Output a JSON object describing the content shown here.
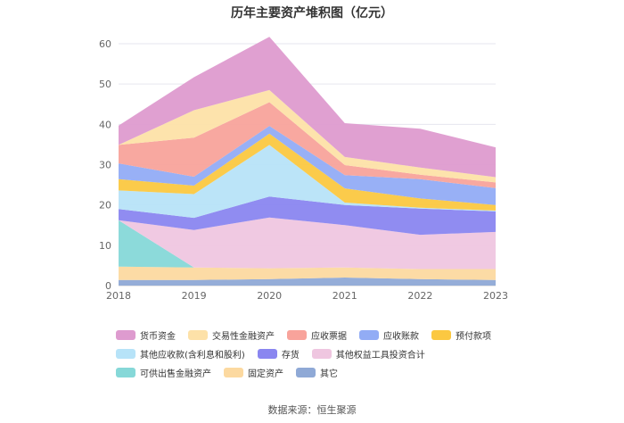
{
  "chart_data": {
    "type": "area",
    "title": "历年主要资产堆积图（亿元）",
    "x": [
      "2018",
      "2019",
      "2020",
      "2021",
      "2022",
      "2023"
    ],
    "y_ticks": [
      "0",
      "10",
      "20",
      "30",
      "40",
      "50",
      "60"
    ],
    "ylim": [
      0,
      60
    ],
    "stacked": true,
    "grid": true,
    "legend_position": "bottom",
    "series": [
      {
        "name": "其它",
        "color": "#8fa9d6",
        "values": [
          1.4,
          1.4,
          1.6,
          2.0,
          1.6,
          1.4
        ]
      },
      {
        "name": "固定资产",
        "color": "#fcd9a0",
        "values": [
          3.3,
          3.1,
          2.7,
          2.5,
          2.5,
          2.7
        ]
      },
      {
        "name": "可供出售金融资产",
        "color": "#86d8d8",
        "values": [
          11.5,
          0,
          0,
          0,
          0,
          0
        ]
      },
      {
        "name": "其他权益工具投资合计",
        "color": "#efc6e0",
        "values": [
          0,
          9.3,
          12.6,
          10.5,
          8.5,
          9.2
        ]
      },
      {
        "name": "存货",
        "color": "#8a86f0",
        "values": [
          2.8,
          3.0,
          5.2,
          5.0,
          6.5,
          5.1
        ]
      },
      {
        "name": "其他应收款(含利息和股利)",
        "color": "#b7e3f8",
        "values": [
          4.6,
          5.9,
          12.8,
          0.6,
          0.2,
          0.2
        ]
      },
      {
        "name": "预付款项",
        "color": "#fbc841",
        "values": [
          2.8,
          2.1,
          2.8,
          3.5,
          2.3,
          1.4
        ]
      },
      {
        "name": "应收账款",
        "color": "#92acf5",
        "values": [
          3.9,
          2.2,
          1.9,
          3.3,
          4.8,
          4.2
        ]
      },
      {
        "name": "应收票据",
        "color": "#f8a39b",
        "values": [
          4.6,
          9.7,
          5.9,
          2.5,
          1.1,
          1.4
        ]
      },
      {
        "name": "交易性金融资产",
        "color": "#fde1a8",
        "values": [
          0,
          6.8,
          3.0,
          2.0,
          1.8,
          1.3
        ]
      },
      {
        "name": "货币资金",
        "color": "#de9bcf",
        "values": [
          4.8,
          8.2,
          13.2,
          8.4,
          9.6,
          7.4
        ]
      }
    ]
  },
  "legend": [
    {
      "label": "货币资金",
      "color": "#de9bcf"
    },
    {
      "label": "交易性金融资产",
      "color": "#fde1a8"
    },
    {
      "label": "应收票据",
      "color": "#f8a39b"
    },
    {
      "label": "应收账款",
      "color": "#92acf5"
    },
    {
      "label": "预付款项",
      "color": "#fbc841"
    },
    {
      "label": "其他应收款(含利息和股利)",
      "color": "#b7e3f8"
    },
    {
      "label": "存货",
      "color": "#8a86f0"
    },
    {
      "label": "其他权益工具投资合计",
      "color": "#efc6e0"
    },
    {
      "label": "可供出售金融资产",
      "color": "#86d8d8"
    },
    {
      "label": "固定资产",
      "color": "#fcd9a0"
    },
    {
      "label": "其它",
      "color": "#8fa9d6"
    }
  ],
  "source": "数据来源：恒生聚源"
}
